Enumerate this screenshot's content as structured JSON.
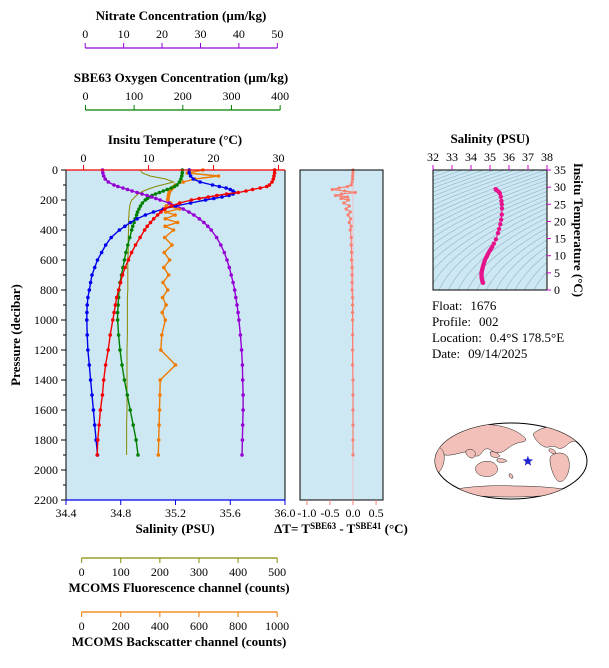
{
  "figure": {
    "bg": "#ffffff",
    "plot_bg": "#cde7f3"
  },
  "info": {
    "rows": [
      {
        "label": "Float:",
        "value": "1676"
      },
      {
        "label": "Profile:",
        "value": "002"
      },
      {
        "label": "Location:",
        "value": "0.4°S  178.5°E"
      },
      {
        "label": "Date:",
        "value": "09/14/2025"
      }
    ]
  },
  "chart_data": [
    {
      "id": "depth-profiles",
      "type": "line",
      "ylabel": "Pressure (decibar)",
      "ylim": [
        0,
        2200
      ],
      "y_inverted": true,
      "y_ticks": [
        "0",
        "200",
        "400",
        "600",
        "800",
        "1000",
        "1200",
        "1400",
        "1600",
        "1800",
        "2000",
        "2200"
      ],
      "pressures": [
        0,
        20,
        40,
        60,
        80,
        100,
        110,
        120,
        130,
        140,
        150,
        160,
        170,
        180,
        190,
        200,
        220,
        240,
        260,
        280,
        300,
        325,
        350,
        375,
        400,
        450,
        500,
        550,
        600,
        650,
        700,
        750,
        800,
        850,
        900,
        950,
        1000,
        1100,
        1200,
        1300,
        1400,
        1500,
        1600,
        1700,
        1800,
        1900
      ],
      "series": [
        {
          "name": "Insitu Temperature (°C)",
          "color": "#f40000",
          "xlim": [
            -2.7,
            31
          ],
          "ticks": [
            "0",
            "10",
            "20",
            "30"
          ],
          "markers": true,
          "values": [
            29.4,
            29.4,
            29.3,
            29.2,
            29.0,
            28.6,
            28.2,
            27.2,
            26.0,
            25.0,
            23.8,
            22.0,
            20.5,
            19.2,
            17.8,
            16.6,
            14.8,
            13.5,
            12.5,
            11.9,
            11.4,
            10.8,
            10.3,
            9.8,
            9.4,
            8.7,
            8.0,
            7.4,
            6.9,
            6.4,
            6.0,
            5.7,
            5.4,
            5.1,
            4.9,
            4.7,
            4.5,
            4.1,
            3.8,
            3.4,
            3.1,
            2.9,
            2.6,
            2.4,
            2.2,
            2.1
          ]
        },
        {
          "name": "Salinity (PSU)",
          "color": "#0000ee",
          "xlim": [
            34.4,
            36.0
          ],
          "ticks": [
            "34.4",
            "34.8",
            "35.2",
            "35.6",
            "36.0"
          ],
          "markers": true,
          "values": [
            35.3,
            35.3,
            35.31,
            35.33,
            35.38,
            35.47,
            35.52,
            35.57,
            35.6,
            35.62,
            35.63,
            35.62,
            35.59,
            35.54,
            35.48,
            35.42,
            35.31,
            35.2,
            35.11,
            35.04,
            34.98,
            34.92,
            34.87,
            34.83,
            34.79,
            34.73,
            34.69,
            34.66,
            34.63,
            34.61,
            34.59,
            34.58,
            34.57,
            34.56,
            34.555,
            34.553,
            34.552,
            34.555,
            34.56,
            34.57,
            34.58,
            34.59,
            34.6,
            34.61,
            34.62,
            34.63
          ]
        },
        {
          "name": "SBE63 Oxygen Concentration (µm/kg)",
          "color": "#008000",
          "xlim": [
            -40,
            410
          ],
          "ticks": [
            "0",
            "100",
            "200",
            "300",
            "400"
          ],
          "markers": true,
          "values": [
            199,
            199,
            198,
            196,
            193,
            188,
            183,
            176,
            168,
            160,
            152,
            144,
            137,
            131,
            127,
            123,
            117,
            113,
            110,
            107,
            105,
            102,
            100,
            97,
            95,
            91,
            87,
            83,
            80,
            77,
            74,
            71,
            69,
            68,
            67,
            66,
            66,
            68,
            71,
            75,
            80,
            86,
            92,
            98,
            104,
            108
          ]
        },
        {
          "name": "Nitrate Concentration (µm/kg)",
          "color": "#9400d3",
          "xlim": [
            -5,
            52
          ],
          "ticks": [
            "0",
            "10",
            "20",
            "30",
            "40",
            "50"
          ],
          "markers": true,
          "values": [
            4.5,
            4.6,
            4.8,
            5.2,
            6.0,
            7.5,
            8.5,
            9.8,
            11.0,
            12.2,
            13.5,
            14.8,
            16.1,
            17.3,
            18.4,
            19.5,
            21.8,
            23.8,
            25.5,
            27.0,
            28.3,
            29.7,
            30.9,
            31.9,
            32.8,
            34.2,
            35.3,
            36.2,
            36.9,
            37.5,
            38.0,
            38.5,
            38.9,
            39.2,
            39.5,
            39.8,
            40.0,
            40.4,
            40.7,
            40.9,
            41.0,
            41.1,
            41.1,
            41.0,
            40.9,
            40.8
          ]
        },
        {
          "name": "MCOMS Fluorescence channel (counts)",
          "color": "#8a8a00",
          "xlim": [
            -40,
            520
          ],
          "ticks": [
            "0",
            "100",
            "200",
            "300",
            "400",
            "500"
          ],
          "markers": false,
          "values": [
            150,
            155,
            175,
            215,
            235,
            205,
            190,
            178,
            168,
            158,
            150,
            144,
            140,
            136,
            133,
            128,
            125,
            123,
            122,
            121,
            121,
            120,
            120,
            120,
            120,
            119,
            119,
            119,
            118,
            118,
            118,
            118,
            118,
            117,
            117,
            117,
            117,
            117,
            116,
            116,
            116,
            116,
            116,
            115,
            115,
            115
          ]
        },
        {
          "name": "MCOMS Backscatter channel (counts)",
          "color": "#ef7a00",
          "xlim": [
            -80,
            1040
          ],
          "ticks": [
            "0",
            "200",
            "400",
            "600",
            "800",
            "1000"
          ],
          "markers": true,
          "values": [
            620,
            540,
            700,
            580,
            520,
            480,
            472,
            465,
            458,
            452,
            448,
            446,
            444,
            443,
            442,
            440,
            455,
            432,
            500,
            430,
            478,
            428,
            490,
            427,
            470,
            425,
            462,
            422,
            450,
            420,
            445,
            416,
            440,
            414,
            432,
            412,
            428,
            410,
            405,
            480,
            402,
            400,
            398,
            396,
            394,
            392
          ]
        }
      ]
    },
    {
      "id": "delta-t",
      "type": "line",
      "xlabel_parts": [
        "ΔT= T",
        "SBE63",
        " - T",
        "SBE41",
        " (°C)"
      ],
      "color": "#fa8072",
      "zero_line_color": "#f2bfca",
      "xlim": [
        -1.15,
        0.65
      ],
      "x_ticks": [
        "-1.0",
        "-0.5",
        "0.0",
        "0.5"
      ],
      "ylim": [
        0,
        2200
      ],
      "values": [
        0.0,
        0.0,
        -0.01,
        -0.01,
        -0.02,
        -0.04,
        -0.12,
        -0.3,
        -0.45,
        -0.18,
        0.05,
        -0.25,
        -0.38,
        -0.12,
        -0.26,
        -0.1,
        -0.2,
        -0.08,
        -0.15,
        -0.06,
        -0.11,
        -0.05,
        -0.08,
        -0.04,
        -0.06,
        -0.04,
        -0.04,
        -0.03,
        -0.03,
        -0.02,
        -0.02,
        -0.02,
        -0.02,
        -0.01,
        -0.01,
        -0.01,
        -0.01,
        -0.01,
        -0.01,
        -0.01,
        0.0,
        0.0,
        0.0,
        0.0,
        0.0,
        0.0
      ]
    },
    {
      "id": "ts-diagram",
      "type": "scatter",
      "xlabel": "Salinity (PSU)",
      "ylabel": "Insitu Temperature (°C)",
      "xlim": [
        32,
        38
      ],
      "ylim": [
        0,
        35
      ],
      "x_ticks": [
        "32",
        "33",
        "34",
        "35",
        "36",
        "37",
        "38"
      ],
      "y_ticks": [
        "0",
        "5",
        "10",
        "15",
        "20",
        "25",
        "30",
        "35"
      ],
      "axis_color": "#cf00cf",
      "marker_color": "#e6148c",
      "points_source": "salinity_vs_temperature_from_depth_profiles",
      "isopycnals": {
        "sigma_start": 16,
        "sigma_end": 30,
        "sigma_step": 0.4,
        "color": "#8fb4c6"
      }
    },
    {
      "id": "location-map",
      "type": "map",
      "land_color": "#f2c0b8",
      "ocean_color": "#ffffff",
      "outline_color": "#000000",
      "center_lon": 135,
      "marker": {
        "lon": 178.5,
        "lat": -0.4,
        "shape": "star",
        "color": "#2222cc"
      }
    }
  ]
}
